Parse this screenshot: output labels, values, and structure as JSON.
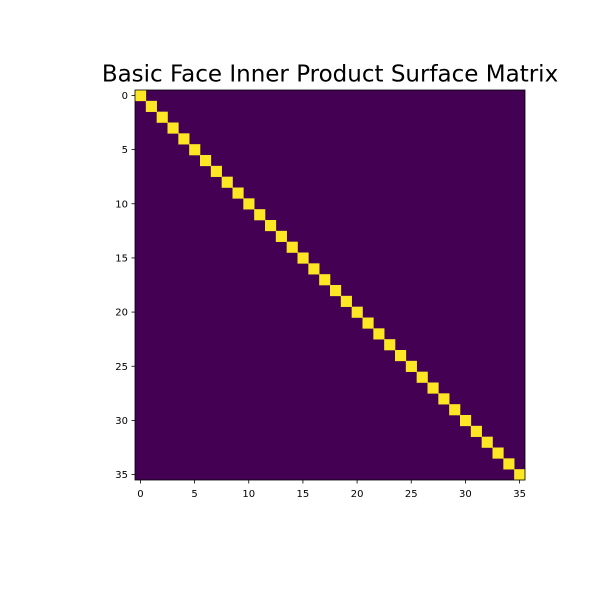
{
  "chart_data": {
    "type": "heatmap",
    "title": "Basic Face Inner Product Surface Matrix",
    "xlabel": "",
    "ylabel": "",
    "size": 36,
    "diagonal_value": 1,
    "off_diagonal_value": 0,
    "xlim": [
      -0.5,
      35.5
    ],
    "ylim": [
      35.5,
      -0.5
    ],
    "x_ticks": [
      0,
      5,
      10,
      15,
      20,
      25,
      30,
      35
    ],
    "y_ticks": [
      0,
      5,
      10,
      15,
      20,
      25,
      30,
      35
    ],
    "colormap": "viridis",
    "colors": {
      "low": "#440154",
      "high": "#fde725"
    },
    "grid": false,
    "legend": "none"
  }
}
